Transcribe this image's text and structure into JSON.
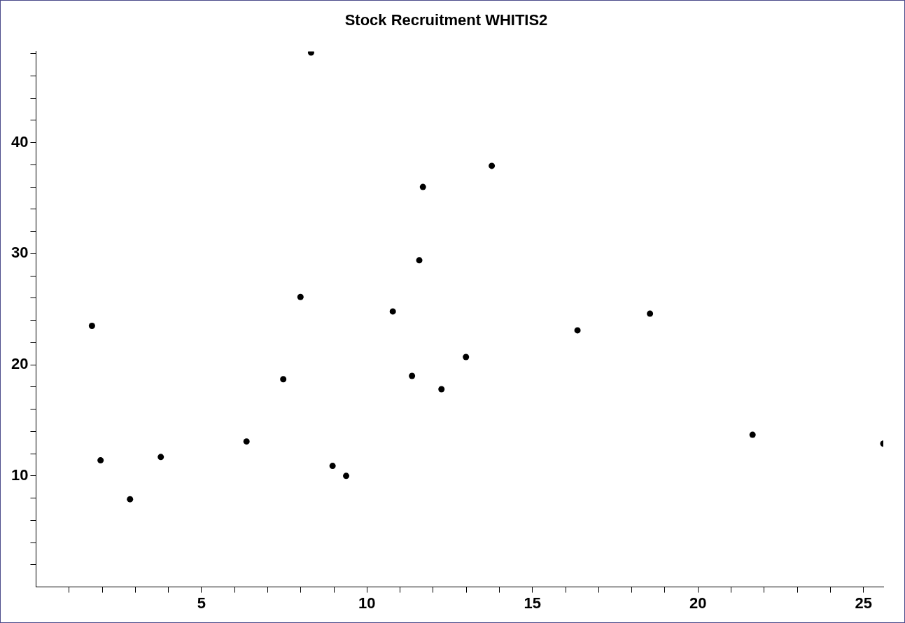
{
  "chart_data": {
    "type": "scatter",
    "title": "Stock Recruitment WHITIS2",
    "x": [
      1.69,
      1.95,
      2.84,
      3.77,
      6.36,
      7.47,
      7.99,
      8.31,
      8.96,
      9.37,
      10.78,
      11.36,
      11.58,
      11.69,
      12.25,
      12.99,
      13.77,
      16.36,
      18.55,
      21.65,
      25.6
    ],
    "series": [
      {
        "color": "#000000",
        "values": [
          23.5,
          11.4,
          7.9,
          11.7,
          13.1,
          18.7,
          26.1,
          48.1,
          10.9,
          10.0,
          24.8,
          19.0,
          29.4,
          36.0,
          17.8,
          20.7,
          37.9,
          23.1,
          24.6,
          13.7,
          12.9
        ]
      }
    ],
    "marker": "circle",
    "grid": false,
    "legend": false,
    "xlim": [
      0,
      25.6
    ],
    "ylim": [
      0,
      48.2
    ],
    "xticks": [
      {
        "value": 1,
        "label": null
      },
      {
        "value": 2,
        "label": null
      },
      {
        "value": 3,
        "label": null
      },
      {
        "value": 4,
        "label": null
      },
      5,
      {
        "value": 6,
        "label": null
      },
      {
        "value": 7,
        "label": null
      },
      {
        "value": 8,
        "label": null
      },
      {
        "value": 9,
        "label": null
      },
      10,
      {
        "value": 11,
        "label": null
      },
      {
        "value": 12,
        "label": null
      },
      {
        "value": 13,
        "label": null
      },
      {
        "value": 14,
        "label": null
      },
      15,
      {
        "value": 16,
        "label": null
      },
      {
        "value": 17,
        "label": null
      },
      {
        "value": 18,
        "label": null
      },
      {
        "value": 19,
        "label": null
      },
      20,
      {
        "value": 21,
        "label": null
      },
      {
        "value": 22,
        "label": null
      },
      {
        "value": 23,
        "label": null
      },
      {
        "value": 24,
        "label": null
      },
      25
    ],
    "yticks": [
      {
        "value": 2,
        "label": null
      },
      {
        "value": 4,
        "label": null
      },
      {
        "value": 6,
        "label": null
      },
      {
        "value": 8,
        "label": null
      },
      10,
      {
        "value": 12,
        "label": null
      },
      {
        "value": 14,
        "label": null
      },
      {
        "value": 16,
        "label": null
      },
      {
        "value": 18,
        "label": null
      },
      20,
      {
        "value": 22,
        "label": null
      },
      {
        "value": 24,
        "label": null
      },
      {
        "value": 26,
        "label": null
      },
      {
        "value": 28,
        "label": null
      },
      30,
      {
        "value": 32,
        "label": null
      },
      {
        "value": 34,
        "label": null
      },
      {
        "value": 36,
        "label": null
      },
      {
        "value": 38,
        "label": null
      },
      40,
      {
        "value": 42,
        "label": null
      },
      {
        "value": 44,
        "label": null
      },
      {
        "value": 46,
        "label": null
      },
      {
        "value": 48,
        "label": null
      }
    ]
  }
}
